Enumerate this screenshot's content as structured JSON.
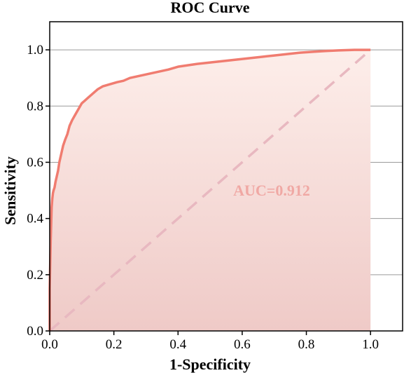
{
  "chart_data": {
    "type": "line",
    "title": "ROC Curve",
    "xlabel": "1-Specificity",
    "ylabel": "Sensitivity",
    "xlim": [
      0,
      1.1
    ],
    "ylim": [
      0,
      1.1
    ],
    "xticks": [
      0.0,
      0.2,
      0.4,
      0.6,
      0.8,
      1.0
    ],
    "yticks": [
      0.0,
      0.2,
      0.4,
      0.6,
      0.8,
      1.0
    ],
    "xtick_labels": [
      "0.0",
      "0.2",
      "0.4",
      "0.6",
      "0.8",
      "1.0"
    ],
    "ytick_labels": [
      "0.0",
      "0.2",
      "0.4",
      "0.6",
      "0.8",
      "1.0"
    ],
    "grid": "horizontal",
    "annotation": "AUC=0.912",
    "colors": {
      "roc_line": "#f07c70",
      "fill_top": "#fdeeea",
      "fill_bottom": "#efcac7",
      "diagonal": "#e8b8c0",
      "annotation": "#f0a8a4",
      "grid": "#9a9a9a",
      "axis": "#000000"
    },
    "series": [
      {
        "style": "solid",
        "x": [
          0.0,
          0.0,
          0.003,
          0.005,
          0.006,
          0.008,
          0.01,
          0.012,
          0.015,
          0.018,
          0.022,
          0.026,
          0.03,
          0.034,
          0.038,
          0.042,
          0.048,
          0.055,
          0.062,
          0.07,
          0.08,
          0.09,
          0.1,
          0.11,
          0.12,
          0.13,
          0.14,
          0.15,
          0.165,
          0.18,
          0.195,
          0.21,
          0.23,
          0.25,
          0.27,
          0.29,
          0.31,
          0.33,
          0.35,
          0.37,
          0.4,
          0.43,
          0.46,
          0.5,
          0.54,
          0.58,
          0.62,
          0.66,
          0.7,
          0.74,
          0.78,
          0.82,
          0.86,
          0.9,
          0.95,
          1.0
        ],
        "y": [
          0.0,
          0.15,
          0.32,
          0.4,
          0.44,
          0.47,
          0.49,
          0.5,
          0.51,
          0.53,
          0.55,
          0.57,
          0.6,
          0.62,
          0.64,
          0.66,
          0.68,
          0.7,
          0.73,
          0.75,
          0.77,
          0.79,
          0.81,
          0.82,
          0.83,
          0.84,
          0.85,
          0.86,
          0.87,
          0.875,
          0.88,
          0.885,
          0.89,
          0.9,
          0.905,
          0.91,
          0.915,
          0.92,
          0.925,
          0.93,
          0.94,
          0.945,
          0.95,
          0.955,
          0.96,
          0.965,
          0.97,
          0.975,
          0.98,
          0.985,
          0.99,
          0.993,
          0.996,
          0.998,
          1.0,
          1.0
        ]
      },
      {
        "style": "dashed",
        "x": [
          0.0,
          1.0
        ],
        "y": [
          0.0,
          1.0
        ]
      }
    ]
  }
}
